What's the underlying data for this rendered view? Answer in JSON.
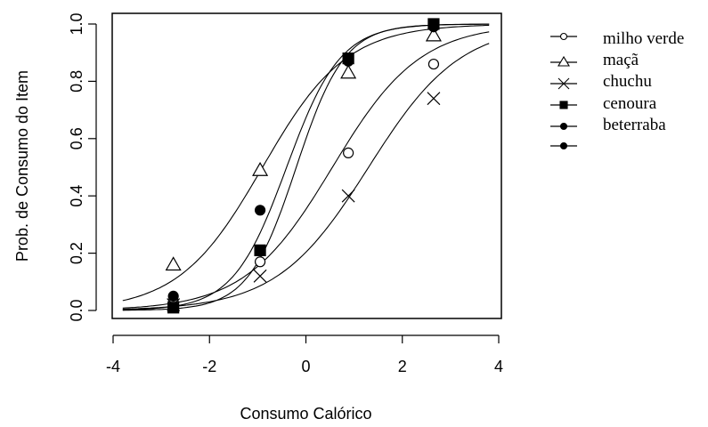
{
  "chart_data": {
    "type": "line",
    "xlabel": "Consumo Calórico",
    "ylabel": "Prob. de Consumo do Item",
    "xlim": [
      -4,
      4
    ],
    "ylim": [
      0,
      1
    ],
    "x_ticks": [
      -4,
      -2,
      0,
      2,
      4
    ],
    "x_tick_labels": [
      "-4",
      "-2",
      "0",
      "2",
      "4"
    ],
    "y_ticks": [
      0,
      0.2,
      0.4,
      0.6,
      0.8,
      1
    ],
    "y_tick_labels": [
      "0.0",
      "0.2",
      "0.4",
      "0.6",
      "0.8",
      "1.0"
    ],
    "grid": false,
    "legend_position": "right",
    "legend_labels": [
      "milho verde",
      "maçã",
      "chuchu",
      "cenoura",
      "beterraba",
      ""
    ],
    "series": [
      {
        "name": "milho verde",
        "marker": "circle-open",
        "curve": {
          "a": 1.1,
          "b": 0.55
        },
        "points": [
          {
            "x": -2.75,
            "y": 0.03
          },
          {
            "x": -0.95,
            "y": 0.17
          },
          {
            "x": 0.88,
            "y": 0.55
          },
          {
            "x": 2.65,
            "y": 0.86
          }
        ]
      },
      {
        "name": "maçã",
        "marker": "triangle-open",
        "curve": {
          "a": 1.15,
          "b": -0.9
        },
        "points": [
          {
            "x": -2.75,
            "y": 0.16
          },
          {
            "x": -0.95,
            "y": 0.49
          },
          {
            "x": 0.88,
            "y": 0.83
          },
          {
            "x": 2.65,
            "y": 0.96
          }
        ]
      },
      {
        "name": "chuchu",
        "marker": "x",
        "curve": {
          "a": 1.05,
          "b": 1.3
        },
        "points": [
          {
            "x": -2.75,
            "y": 0.02
          },
          {
            "x": -0.95,
            "y": 0.12
          },
          {
            "x": 0.88,
            "y": 0.4
          },
          {
            "x": 2.65,
            "y": 0.74
          }
        ]
      },
      {
        "name": "cenoura",
        "marker": "square-filled",
        "curve": {
          "a": 2.0,
          "b": -0.2
        },
        "points": [
          {
            "x": -2.75,
            "y": 0.01
          },
          {
            "x": -0.95,
            "y": 0.21
          },
          {
            "x": 0.88,
            "y": 0.88
          },
          {
            "x": 2.65,
            "y": 1.0
          }
        ]
      },
      {
        "name": "beterraba",
        "marker": "circle-filled",
        "curve": {
          "a": 1.8,
          "b": -0.4
        },
        "points": [
          {
            "x": -2.75,
            "y": 0.05
          },
          {
            "x": -0.95,
            "y": 0.35
          },
          {
            "x": 0.88,
            "y": 0.87
          },
          {
            "x": 2.65,
            "y": 0.99
          }
        ]
      }
    ]
  }
}
